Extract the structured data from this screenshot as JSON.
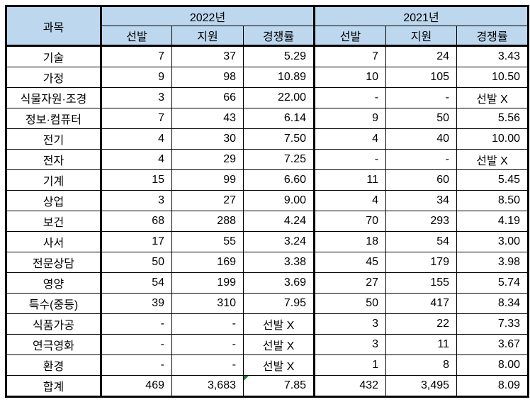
{
  "header": {
    "subject_label": "과목",
    "year_groups": [
      {
        "label": "2022년",
        "sub_columns": [
          "선발",
          "지원",
          "경쟁률"
        ]
      },
      {
        "label": "2021년",
        "sub_columns": [
          "선발",
          "지원",
          "경쟁률"
        ]
      }
    ]
  },
  "colors": {
    "header_bg": "#BDD7EE",
    "border": "#000000",
    "error_indicator_green": "#1E7D33",
    "text": "#000000"
  },
  "error_indicator": {
    "row_index": 16,
    "col_index": 3,
    "description": "small green triangle in top-left corner of the 합계 2022 경쟁률 cell"
  },
  "chart_data": {
    "type": "table",
    "title": "",
    "columns": [
      "과목",
      "2022년 선발",
      "2022년 지원",
      "2022년 경쟁률",
      "2021년 선발",
      "2021년 지원",
      "2021년 경쟁률"
    ],
    "rows": [
      [
        "기술",
        "7",
        "37",
        "5.29",
        "7",
        "24",
        "3.43"
      ],
      [
        "가정",
        "9",
        "98",
        "10.89",
        "10",
        "105",
        "10.50"
      ],
      [
        "식물자원·조경",
        "3",
        "66",
        "22.00",
        "-",
        "-",
        "선발 X"
      ],
      [
        "정보·컴퓨터",
        "7",
        "43",
        "6.14",
        "9",
        "50",
        "5.56"
      ],
      [
        "전기",
        "4",
        "30",
        "7.50",
        "4",
        "40",
        "10.00"
      ],
      [
        "전자",
        "4",
        "29",
        "7.25",
        "-",
        "-",
        "선발 X"
      ],
      [
        "기계",
        "15",
        "99",
        "6.60",
        "11",
        "60",
        "5.45"
      ],
      [
        "상업",
        "3",
        "27",
        "9.00",
        "4",
        "34",
        "8.50"
      ],
      [
        "보건",
        "68",
        "288",
        "4.24",
        "70",
        "293",
        "4.19"
      ],
      [
        "사서",
        "17",
        "55",
        "3.24",
        "18",
        "54",
        "3.00"
      ],
      [
        "전문상담",
        "50",
        "169",
        "3.38",
        "45",
        "179",
        "3.98"
      ],
      [
        "영양",
        "54",
        "199",
        "3.69",
        "27",
        "155",
        "5.74"
      ],
      [
        "특수(중등)",
        "39",
        "310",
        "7.95",
        "50",
        "417",
        "8.34"
      ],
      [
        "식품가공",
        "-",
        "-",
        "선발 X",
        "3",
        "22",
        "7.33"
      ],
      [
        "연극영화",
        "-",
        "-",
        "선발 X",
        "3",
        "11",
        "3.67"
      ],
      [
        "환경",
        "-",
        "-",
        "선발 X",
        "1",
        "8",
        "8.00"
      ],
      [
        "합계",
        "469",
        "3,683",
        "7.85",
        "432",
        "3,495",
        "8.09"
      ]
    ]
  }
}
